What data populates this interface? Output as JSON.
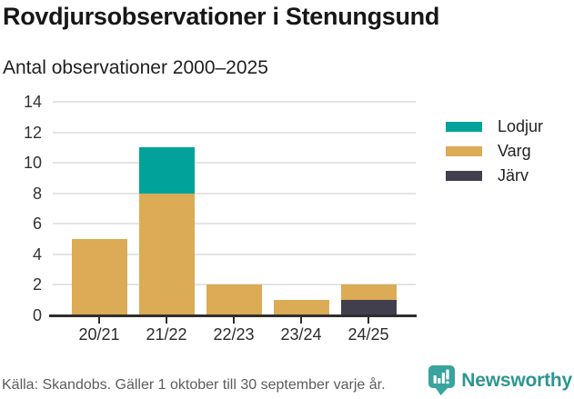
{
  "title": "Rovdjursobservationer i Stenungsund",
  "subtitle": "Antal observationer 2000–2025",
  "footer": {
    "source": "Källa: Skandobs. Gäller 1 oktober till 30 september varje år.",
    "brand": "Newsworthy"
  },
  "colors": {
    "lodjur": "#00a29a",
    "varg": "#dbab55",
    "jarv": "#413e4d",
    "brand_icon_teal": "#3aa39d",
    "brand_text_teal": "#2d968f"
  },
  "legend": [
    {
      "label": "Lodjur",
      "color": "#00a29a"
    },
    {
      "label": "Varg",
      "color": "#dbab55"
    },
    {
      "label": "Järv",
      "color": "#413e4d"
    }
  ],
  "chart_data": {
    "type": "bar",
    "stacked": true,
    "title": "Rovdjursobservationer i Stenungsund",
    "subtitle": "Antal observationer 2000–2025",
    "categories": [
      "20/21",
      "21/22",
      "22/23",
      "23/24",
      "24/25"
    ],
    "series": [
      {
        "name": "Lodjur",
        "color": "#00a29a",
        "values": [
          0,
          3,
          0,
          0,
          0
        ]
      },
      {
        "name": "Varg",
        "color": "#dbab55",
        "values": [
          5,
          8,
          2,
          1,
          1
        ]
      },
      {
        "name": "Järv",
        "color": "#413e4d",
        "values": [
          0,
          0,
          0,
          0,
          1
        ]
      }
    ],
    "stack_order_bottom_to_top": [
      "Järv",
      "Varg",
      "Lodjur"
    ],
    "totals": [
      5,
      11,
      2,
      1,
      2
    ],
    "xlabel": "",
    "ylabel": "",
    "yticks": [
      0,
      2,
      4,
      6,
      8,
      10,
      12,
      14
    ],
    "ylim": [
      0,
      14
    ],
    "grid": "horizontal",
    "legend_position": "right"
  }
}
